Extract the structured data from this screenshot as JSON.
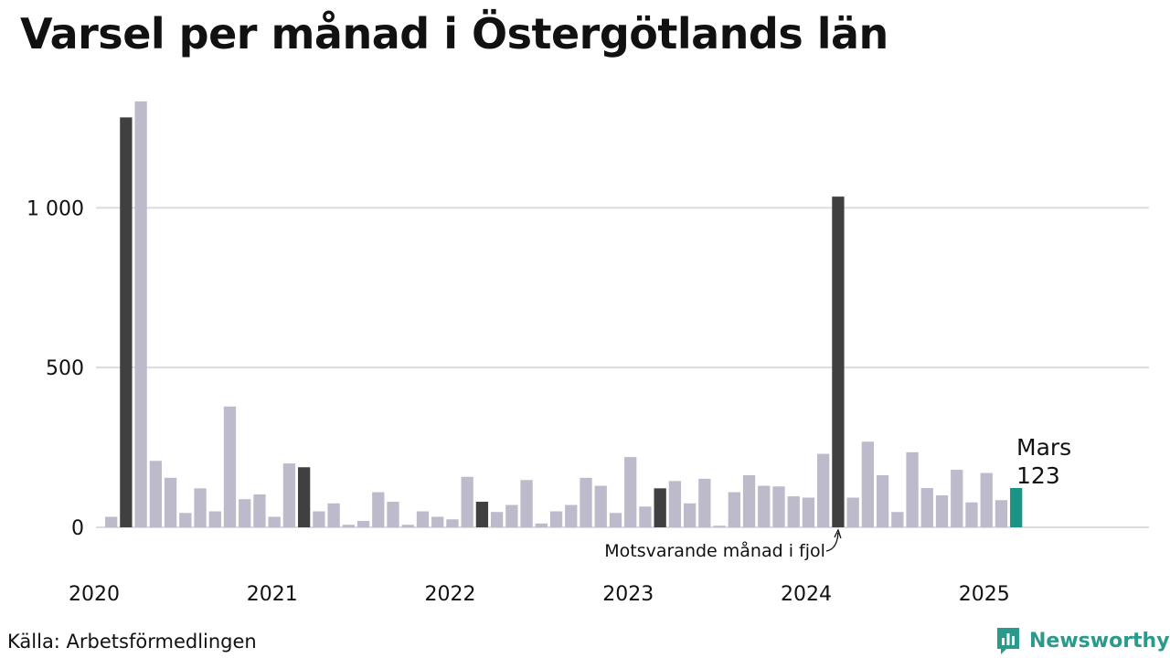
{
  "title": "Varsel per månad i Östergötlands län",
  "source": "Källa: Arbetsförmedlingen",
  "brand": "Newsworthy",
  "colors": {
    "bar": "#bdbbcb",
    "same_month": "#404040",
    "current": "#1a9485",
    "grid": "#dcdcdc",
    "brand": "#2a9a8c"
  },
  "chart_data": {
    "type": "bar",
    "ylim": [
      0,
      1350
    ],
    "yticks": [
      {
        "value": 0,
        "label": "0"
      },
      {
        "value": 500,
        "label": "500"
      },
      {
        "value": 1000,
        "label": "1 000"
      }
    ],
    "xticks": [
      {
        "index": 0,
        "label": "2020"
      },
      {
        "index": 12,
        "label": "2021"
      },
      {
        "index": 24,
        "label": "2022"
      },
      {
        "index": 36,
        "label": "2023"
      },
      {
        "index": 48,
        "label": "2024"
      },
      {
        "index": 60,
        "label": "2025"
      }
    ],
    "total_slots": 70,
    "values": [
      33,
      1283,
      1333,
      208,
      155,
      45,
      122,
      50,
      378,
      88,
      103,
      33,
      200,
      188,
      50,
      75,
      8,
      20,
      110,
      80,
      8,
      50,
      33,
      25,
      158,
      80,
      48,
      70,
      148,
      12,
      50,
      70,
      155,
      130,
      45,
      220,
      65,
      122,
      145,
      75,
      152,
      5,
      110,
      163,
      130,
      128,
      97,
      93,
      230,
      1035,
      93,
      268,
      163,
      48,
      235,
      123,
      100,
      180,
      78,
      170,
      85,
      123
    ],
    "highlight_same_month": [
      1,
      13,
      25,
      37,
      49
    ],
    "current_index": 61,
    "current_label": {
      "month": "Mars",
      "value": "123"
    },
    "annotation": "Motsvarande månad i fjol",
    "annotation_index": 49,
    "grid": true
  }
}
